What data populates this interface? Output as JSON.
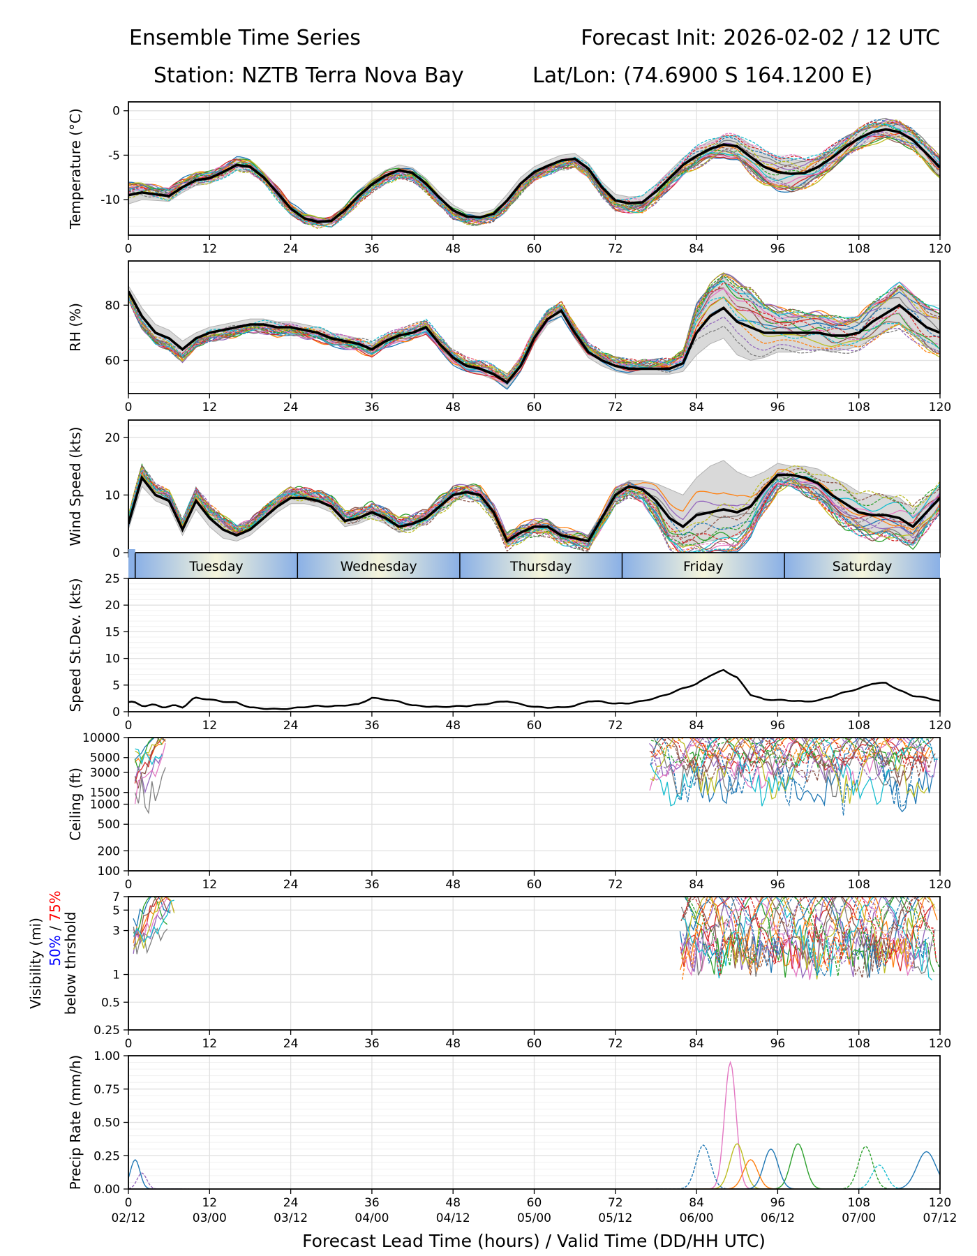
{
  "header": {
    "title_left": "Ensemble Time Series",
    "title_right": "Forecast Init: 2026-02-02 / 12 UTC",
    "station": "Station: NZTB Terra Nova Bay",
    "latlon": "Lat/Lon: (74.6900 S 164.1200 E)"
  },
  "xaxis": {
    "label": "Forecast Lead Time (hours) / Valid Time (DD/HH UTC)",
    "range": [
      0,
      120
    ],
    "ticks": [
      0,
      12,
      24,
      36,
      48,
      60,
      72,
      84,
      96,
      108,
      120
    ],
    "tick_labels": [
      "0",
      "12",
      "24",
      "36",
      "48",
      "60",
      "72",
      "84",
      "96",
      "108",
      "120"
    ],
    "valid_times": [
      "02/12",
      "03/00",
      "03/12",
      "04/00",
      "04/12",
      "05/00",
      "05/12",
      "06/00",
      "06/12",
      "07/00",
      "07/12"
    ]
  },
  "day_band": {
    "days": [
      {
        "name": "Tuesday",
        "start": 1,
        "end": 25
      },
      {
        "name": "Wednesday",
        "start": 25,
        "end": 49
      },
      {
        "name": "Thursday",
        "start": 49,
        "end": 73
      },
      {
        "name": "Friday",
        "start": 73,
        "end": 97
      },
      {
        "name": "Saturday",
        "start": 97,
        "end": 121
      }
    ],
    "edge_color": "#8ab0e6",
    "center_color": "#f5f5dc"
  },
  "colors": {
    "members": [
      "#1f77b4",
      "#ff7f0e",
      "#2ca02c",
      "#d62728",
      "#9467bd",
      "#8c564b",
      "#e377c2",
      "#7f7f7f",
      "#bcbd22",
      "#17becf"
    ],
    "mean": "#000000",
    "spread": "#d9d9d9",
    "vis_50": "#0000ff",
    "vis_75": "#ff0000"
  },
  "chart_data": [
    {
      "id": "temperature",
      "type": "line",
      "ylabel": "Temperature (°C)",
      "ylim": [
        -14,
        1
      ],
      "yticks": [
        0,
        -5,
        -10
      ],
      "ytick_labels": [
        "0",
        "-5",
        "-10"
      ],
      "scale": "linear",
      "x": [
        0,
        2,
        4,
        6,
        8,
        10,
        12,
        14,
        16,
        18,
        20,
        22,
        24,
        26,
        28,
        30,
        32,
        34,
        36,
        38,
        40,
        42,
        44,
        46,
        48,
        50,
        52,
        54,
        56,
        58,
        60,
        62,
        64,
        66,
        68,
        70,
        72,
        74,
        76,
        78,
        80,
        82,
        84,
        86,
        88,
        90,
        92,
        94,
        96,
        98,
        100,
        102,
        104,
        106,
        108,
        110,
        112,
        114,
        116,
        118,
        120
      ],
      "mean": [
        -9.5,
        -9.2,
        -9.4,
        -9.6,
        -8.6,
        -7.8,
        -7.6,
        -6.9,
        -6.1,
        -6.3,
        -7.5,
        -9.2,
        -11.0,
        -12.1,
        -12.5,
        -12.4,
        -11.2,
        -9.6,
        -8.3,
        -7.3,
        -6.7,
        -7.0,
        -8.2,
        -9.8,
        -11.2,
        -11.9,
        -12.0,
        -11.6,
        -10.1,
        -8.2,
        -6.9,
        -6.2,
        -5.6,
        -5.4,
        -6.5,
        -8.6,
        -10.1,
        -10.4,
        -10.3,
        -9.1,
        -7.6,
        -6.1,
        -5.1,
        -4.3,
        -3.8,
        -4.0,
        -5.2,
        -6.3,
        -6.9,
        -7.1,
        -7.0,
        -6.3,
        -5.3,
        -4.1,
        -3.1,
        -2.4,
        -2.1,
        -2.4,
        -3.3,
        -4.8,
        -6.4
      ],
      "spread_lo": [
        -10.5,
        -10.0,
        -10.1,
        -10.2,
        -9.2,
        -8.4,
        -8.2,
        -7.5,
        -6.7,
        -6.9,
        -8.1,
        -9.8,
        -11.5,
        -12.6,
        -12.9,
        -12.8,
        -11.7,
        -10.2,
        -8.9,
        -7.9,
        -7.3,
        -7.6,
        -8.8,
        -10.4,
        -11.8,
        -12.4,
        -12.5,
        -12.1,
        -10.8,
        -8.9,
        -7.5,
        -6.8,
        -6.2,
        -6.0,
        -7.1,
        -9.2,
        -10.8,
        -11.1,
        -11.0,
        -9.9,
        -8.4,
        -6.9,
        -6.0,
        -5.2,
        -4.8,
        -5.2,
        -6.6,
        -7.8,
        -8.6,
        -8.8,
        -8.3,
        -7.4,
        -6.3,
        -5.0,
        -4.0,
        -3.3,
        -3.0,
        -3.3,
        -4.2,
        -5.7,
        -7.3
      ],
      "spread_hi": [
        -8.6,
        -8.4,
        -8.7,
        -9.0,
        -8.0,
        -7.2,
        -7.0,
        -6.3,
        -5.5,
        -5.7,
        -6.9,
        -8.6,
        -10.5,
        -11.6,
        -12.1,
        -12.0,
        -10.7,
        -9.0,
        -7.7,
        -6.7,
        -6.1,
        -6.4,
        -7.6,
        -9.2,
        -10.6,
        -11.4,
        -11.5,
        -11.1,
        -9.4,
        -7.5,
        -6.3,
        -5.6,
        -5.0,
        -4.8,
        -5.9,
        -8.0,
        -9.4,
        -9.7,
        -9.6,
        -8.3,
        -6.8,
        -5.3,
        -4.2,
        -3.4,
        -2.8,
        -2.8,
        -3.8,
        -4.8,
        -5.2,
        -5.4,
        -5.7,
        -5.2,
        -4.3,
        -3.2,
        -2.2,
        -1.5,
        -1.2,
        -1.5,
        -2.4,
        -3.9,
        -5.5
      ],
      "jitter": 0.6
    },
    {
      "id": "rh",
      "type": "line",
      "ylabel": "RH (%)",
      "ylim": [
        48,
        96
      ],
      "yticks": [
        80,
        60
      ],
      "ytick_labels": [
        "80",
        "60"
      ],
      "scale": "linear",
      "x": [
        0,
        2,
        4,
        6,
        8,
        10,
        12,
        14,
        16,
        18,
        20,
        22,
        24,
        26,
        28,
        30,
        32,
        34,
        36,
        38,
        40,
        42,
        44,
        46,
        48,
        50,
        52,
        54,
        56,
        58,
        60,
        62,
        64,
        66,
        68,
        70,
        72,
        74,
        76,
        78,
        80,
        82,
        84,
        86,
        88,
        90,
        92,
        94,
        96,
        98,
        100,
        102,
        104,
        106,
        108,
        110,
        112,
        114,
        116,
        118,
        120
      ],
      "mean": [
        85,
        76,
        70,
        68,
        64,
        68,
        70,
        71,
        72,
        73,
        73,
        72,
        72,
        71,
        70,
        68,
        67,
        66,
        64,
        67,
        69,
        70,
        72,
        66,
        61,
        58,
        57,
        55,
        52,
        58,
        68,
        75,
        78,
        70,
        63,
        60,
        58,
        57,
        57,
        57,
        57,
        59,
        70,
        76,
        79,
        74,
        72,
        70,
        70,
        70,
        70,
        70,
        69,
        69,
        70,
        74,
        77,
        80,
        76,
        72,
        70
      ],
      "spread_lo": [
        83,
        73,
        67,
        65,
        61,
        66,
        68,
        69,
        70,
        71,
        71,
        70,
        70,
        69,
        68,
        66,
        65,
        64,
        62,
        65,
        67,
        68,
        70,
        64,
        59,
        56,
        55,
        53,
        50,
        56,
        66,
        73,
        76,
        68,
        61,
        58,
        56,
        55,
        55,
        55,
        55,
        56,
        62,
        66,
        68,
        62,
        60,
        61,
        63,
        63,
        64,
        64,
        63,
        64,
        65,
        68,
        71,
        73,
        69,
        65,
        63
      ],
      "spread_hi": [
        87,
        79,
        73,
        71,
        67,
        70,
        72,
        73,
        74,
        75,
        75,
        74,
        74,
        73,
        72,
        70,
        69,
        68,
        66,
        69,
        71,
        72,
        74,
        68,
        63,
        60,
        59,
        57,
        54,
        60,
        70,
        77,
        80,
        72,
        65,
        62,
        60,
        59,
        59,
        59,
        60,
        63,
        78,
        86,
        90,
        86,
        84,
        79,
        77,
        77,
        76,
        76,
        75,
        74,
        75,
        80,
        83,
        87,
        83,
        79,
        77
      ],
      "jitter": 2.0
    },
    {
      "id": "wind",
      "type": "line",
      "ylabel": "Wind Speed (kts)",
      "ylim": [
        0,
        23
      ],
      "yticks": [
        20,
        10,
        0
      ],
      "ytick_labels": [
        "20",
        "10",
        "0"
      ],
      "scale": "linear",
      "x": [
        0,
        2,
        4,
        6,
        8,
        10,
        12,
        14,
        16,
        18,
        20,
        22,
        24,
        26,
        28,
        30,
        32,
        34,
        36,
        38,
        40,
        42,
        44,
        46,
        48,
        50,
        52,
        54,
        56,
        58,
        60,
        62,
        64,
        66,
        68,
        70,
        72,
        74,
        76,
        78,
        80,
        82,
        84,
        86,
        88,
        90,
        92,
        94,
        96,
        98,
        100,
        102,
        104,
        106,
        108,
        110,
        112,
        114,
        116,
        118,
        120
      ],
      "mean": [
        5,
        13,
        10,
        9,
        4,
        9,
        6,
        4,
        3,
        4,
        6,
        8,
        9.5,
        9.5,
        9,
        8,
        5.5,
        6,
        7,
        6,
        4.5,
        5,
        6,
        8,
        10,
        10.5,
        10,
        7,
        2,
        3.5,
        4.5,
        4.5,
        3,
        2.5,
        2,
        6,
        10,
        11.5,
        11,
        9,
        6,
        4.5,
        6.5,
        7,
        7.5,
        7,
        8,
        11,
        13.5,
        13.5,
        13,
        12,
        10,
        8.5,
        7,
        6.5,
        6.5,
        6,
        4.5,
        7,
        9.5
      ],
      "spread_lo": [
        4,
        11.5,
        9,
        8,
        3,
        7.5,
        4.5,
        2.5,
        2,
        3,
        5,
        7,
        8.5,
        8.5,
        8,
        7,
        4.5,
        5,
        6,
        5,
        3.5,
        4,
        5,
        7,
        9,
        9.5,
        9,
        6,
        1,
        2.5,
        3.5,
        3.5,
        2,
        1.5,
        1,
        5,
        9,
        10.5,
        9.5,
        6.5,
        3,
        1,
        1.5,
        2,
        2.5,
        3,
        4.5,
        8,
        11.5,
        12,
        11,
        9.5,
        7.5,
        5.5,
        4,
        3.5,
        3.5,
        3,
        2,
        4.5,
        7.5
      ],
      "spread_hi": [
        6,
        14.5,
        11,
        10,
        5,
        10.5,
        7.5,
        5.5,
        4,
        5,
        7,
        9,
        10.5,
        10.5,
        10,
        9,
        6.5,
        7,
        8,
        7,
        5.5,
        6,
        7,
        9,
        11,
        11.5,
        11,
        8,
        3,
        4.5,
        5.5,
        5.5,
        4,
        3.5,
        3,
        7,
        11,
        12.5,
        12.5,
        12,
        11,
        10,
        13,
        15,
        16,
        14,
        13,
        14,
        15.5,
        15,
        15,
        14.5,
        13,
        12,
        10.5,
        10,
        10,
        9.5,
        7.5,
        9.5,
        11.5
      ],
      "jitter": 1.2
    },
    {
      "id": "stdev",
      "type": "line",
      "ylabel": "Speed St.Dev. (kts)",
      "ylim": [
        0,
        25
      ],
      "yticks": [
        25,
        20,
        15,
        10,
        5,
        0
      ],
      "ytick_labels": [
        "25",
        "20",
        "15",
        "10",
        "5",
        "0"
      ],
      "scale": "linear",
      "x": [
        0,
        2,
        4,
        6,
        8,
        10,
        12,
        14,
        16,
        18,
        20,
        22,
        24,
        26,
        28,
        30,
        32,
        34,
        36,
        38,
        40,
        42,
        44,
        46,
        48,
        50,
        52,
        54,
        56,
        58,
        60,
        62,
        64,
        66,
        68,
        70,
        72,
        74,
        76,
        78,
        80,
        82,
        84,
        86,
        88,
        90,
        92,
        94,
        96,
        98,
        100,
        102,
        104,
        106,
        108,
        110,
        112,
        114,
        116,
        118,
        120
      ],
      "series": [
        {
          "name": "St.Dev.",
          "values": [
            1.8,
            1.3,
            1.1,
            1.0,
            1.0,
            2.6,
            2.3,
            1.9,
            1.7,
            0.8,
            0.6,
            0.5,
            0.6,
            0.9,
            1.1,
            1.0,
            1.2,
            1.4,
            2.6,
            2.3,
            1.9,
            1.2,
            1.0,
            0.9,
            1.0,
            1.1,
            1.3,
            1.7,
            2.0,
            1.4,
            0.9,
            0.8,
            0.8,
            1.1,
            2.0,
            1.9,
            1.5,
            1.6,
            2.0,
            2.6,
            3.4,
            4.4,
            5.2,
            6.8,
            7.8,
            6.4,
            3.2,
            2.3,
            2.2,
            2.1,
            1.9,
            2.1,
            2.9,
            3.7,
            4.3,
            5.3,
            5.4,
            4.0,
            3.0,
            2.6,
            2.0
          ]
        }
      ]
    },
    {
      "id": "ceiling",
      "type": "line",
      "ylabel": "Ceiling (ft)",
      "scale": "log",
      "ylim": [
        100,
        10000
      ],
      "yticks": [
        10000,
        5000,
        3000,
        1500,
        1000,
        500,
        200,
        100
      ],
      "ytick_labels": [
        "10000",
        "5000",
        "3000",
        "1500",
        "1000",
        "500",
        "200",
        "100"
      ],
      "groups": [
        {
          "range": [
            0,
            6
          ],
          "peak": 4500,
          "spread": 0.25
        },
        {
          "range": [
            77,
            120
          ],
          "peak": 4000,
          "spread": 0.35
        }
      ]
    },
    {
      "id": "visibility",
      "type": "line",
      "ylabel": "Visibility (mi)",
      "ylabel_50": "50%",
      "ylabel_sep": " / ",
      "ylabel_75": "75%",
      "ylabel_suffix": "below thrshold",
      "scale": "log",
      "ylim": [
        0.25,
        7
      ],
      "yticks": [
        7,
        5,
        3,
        1,
        0.5,
        0.25
      ],
      "ytick_labels": [
        "7",
        "5",
        "3",
        "1",
        "0.5",
        "0.25"
      ],
      "groups": [
        {
          "range": [
            0,
            7
          ],
          "peak": 1.5,
          "spread": 0.5
        },
        {
          "range": [
            77,
            120
          ],
          "peak": 0.8,
          "spread": 0.7
        }
      ]
    },
    {
      "id": "precip",
      "type": "line",
      "ylabel": "Precip Rate (mm/h)",
      "ylim": [
        0,
        1.0
      ],
      "yticks": [
        1.0,
        0.75,
        0.5,
        0.25,
        0.0
      ],
      "ytick_labels": [
        "1.00",
        "0.75",
        "0.50",
        "0.25",
        "0.00"
      ],
      "scale": "linear",
      "peaks": [
        {
          "member": 6,
          "x": 89,
          "value": 0.95,
          "width": 1.2
        },
        {
          "member": 0,
          "x": 85,
          "value": 0.33,
          "width": 1.5
        },
        {
          "member": 8,
          "x": 90,
          "value": 0.34,
          "width": 1.5
        },
        {
          "member": 2,
          "x": 99,
          "value": 0.34,
          "width": 1.5
        },
        {
          "member": 2,
          "x": 109,
          "value": 0.32,
          "width": 1.5
        },
        {
          "member": 0,
          "x": 95,
          "value": 0.3,
          "width": 1.5
        },
        {
          "member": 0,
          "x": 118,
          "value": 0.28,
          "width": 2.0
        },
        {
          "member": 9,
          "x": 111,
          "value": 0.18,
          "width": 1.5
        },
        {
          "member": 1,
          "x": 92,
          "value": 0.22,
          "width": 1.5
        },
        {
          "member": 0,
          "x": 1,
          "value": 0.22,
          "width": 1.0
        },
        {
          "member": 4,
          "x": 2,
          "value": 0.12,
          "width": 1.0
        }
      ]
    }
  ]
}
